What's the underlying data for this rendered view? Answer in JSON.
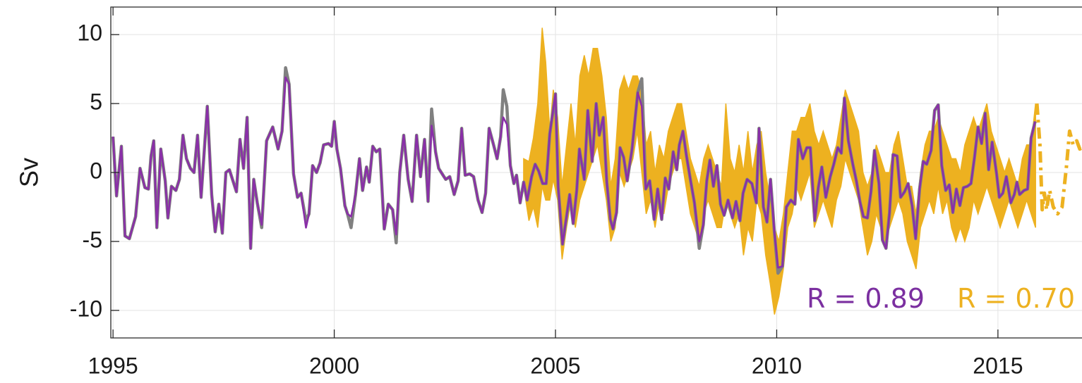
{
  "chart_data": {
    "type": "line",
    "ylabel": "Sv",
    "xlim": [
      1994.95,
      2016.9
    ],
    "ylim": [
      -12,
      12
    ],
    "xticks": [
      1995,
      2000,
      2005,
      2010,
      2015
    ],
    "yticks": [
      -10,
      -5,
      0,
      5,
      10
    ],
    "grid": true,
    "annotations": [
      {
        "text": "R = 0.89",
        "color": "#7b2fa0"
      },
      {
        "text": "R = 0.70",
        "color": "#edb120"
      }
    ],
    "x": [
      1995.0,
      1995.08,
      1995.19,
      1995.27,
      1995.37,
      1995.51,
      1995.61,
      1995.72,
      1995.8,
      1995.86,
      1995.92,
      1995.99,
      1996.08,
      1996.18,
      1996.24,
      1996.32,
      1996.42,
      1996.5,
      1996.58,
      1996.66,
      1996.75,
      1996.83,
      1996.91,
      1996.99,
      1997.13,
      1997.23,
      1997.31,
      1997.39,
      1997.47,
      1997.55,
      1997.63,
      1997.79,
      1997.87,
      1997.95,
      1998.03,
      1998.11,
      1998.18,
      1998.26,
      1998.36,
      1998.47,
      1998.61,
      1998.73,
      1998.82,
      1998.9,
      1998.98,
      1999.08,
      1999.17,
      1999.25,
      1999.36,
      1999.43,
      1999.51,
      1999.6,
      1999.68,
      1999.76,
      1999.87,
      1999.94,
      2000.0,
      2000.06,
      2000.14,
      2000.24,
      2000.3,
      2000.38,
      2000.48,
      2000.57,
      2000.64,
      2000.73,
      2000.79,
      2000.87,
      2000.95,
      2001.03,
      2001.13,
      2001.22,
      2001.32,
      2001.4,
      2001.48,
      2001.57,
      2001.67,
      2001.76,
      2001.86,
      2001.95,
      2002.04,
      2002.12,
      2002.2,
      2002.29,
      2002.36,
      2002.44,
      2002.52,
      2002.61,
      2002.71,
      2002.8,
      2002.88,
      2002.96,
      2003.06,
      2003.15,
      2003.25,
      2003.34,
      2003.42,
      2003.5,
      2003.6,
      2003.68,
      2003.76,
      2003.82,
      2003.9,
      2003.98,
      2004.06,
      2004.12,
      2004.2,
      2004.28,
      2004.36,
      2004.46,
      2004.54,
      2004.62,
      2004.71,
      2004.79,
      2004.87,
      2005.0,
      2005.06,
      2005.16,
      2005.24,
      2005.32,
      2005.4,
      2005.48,
      2005.54,
      2005.65,
      2005.73,
      2005.83,
      2005.92,
      2005.99,
      2006.08,
      2006.16,
      2006.24,
      2006.3,
      2006.38,
      2006.46,
      2006.54,
      2006.62,
      2006.73,
      2006.86,
      2006.95,
      2007.04,
      2007.13,
      2007.23,
      2007.31,
      2007.4,
      2007.48,
      2007.56,
      2007.66,
      2007.74,
      2007.8,
      2007.88,
      2007.96,
      2008.06,
      2008.14,
      2008.25,
      2008.34,
      2008.42,
      2008.49,
      2008.57,
      2008.65,
      2008.73,
      2008.81,
      2008.9,
      2009.0,
      2009.08,
      2009.17,
      2009.24,
      2009.33,
      2009.44,
      2009.54,
      2009.6,
      2009.7,
      2009.78,
      2009.86,
      2009.95,
      2010.03,
      2010.13,
      2010.22,
      2010.32,
      2010.41,
      2010.49,
      2010.59,
      2010.68,
      2010.76,
      2010.86,
      2010.94,
      2011.02,
      2011.11,
      2011.21,
      2011.29,
      2011.38,
      2011.46,
      2011.53,
      2011.62,
      2011.72,
      2011.8,
      2011.88,
      2011.96,
      2012.05,
      2012.13,
      2012.21,
      2012.31,
      2012.39,
      2012.47,
      2012.55,
      2012.63,
      2012.72,
      2012.8,
      2012.89,
      2012.97,
      2013.06,
      2013.14,
      2013.23,
      2013.31,
      2013.39,
      2013.49,
      2013.57,
      2013.65,
      2013.73,
      2013.82,
      2013.9,
      2013.98,
      2014.06,
      2014.14,
      2014.22,
      2014.31,
      2014.39,
      2014.47,
      2014.55,
      2014.63,
      2014.71,
      2014.79,
      2014.87,
      2014.97,
      2015.03,
      2015.11,
      2015.19,
      2015.29,
      2015.37,
      2015.43,
      2015.49,
      2015.59,
      2015.67,
      2015.75,
      2015.84
    ],
    "series": [
      {
        "type": "band",
        "color": "#edb120",
        "x": [
          2004.28,
          2004.4,
          2004.5,
          2004.6,
          2004.7,
          2004.78,
          2004.87,
          2004.95,
          2005.05,
          2005.15,
          2005.25,
          2005.35,
          2005.45,
          2005.55,
          2005.65,
          2005.75,
          2005.85,
          2005.95,
          2006.05,
          2006.15,
          2006.25,
          2006.35,
          2006.45,
          2006.55,
          2006.65,
          2006.75,
          2006.85,
          2006.95,
          2007.05,
          2007.15,
          2007.25,
          2007.35,
          2007.45,
          2007.55,
          2007.65,
          2007.75,
          2007.85,
          2007.95,
          2008.05,
          2008.15,
          2008.25,
          2008.35,
          2008.45,
          2008.55,
          2008.65,
          2008.75,
          2008.85,
          2008.95,
          2009.05,
          2009.15,
          2009.25,
          2009.35,
          2009.45,
          2009.55,
          2009.65,
          2009.75,
          2009.85,
          2009.95,
          2010.05,
          2010.15,
          2010.25,
          2010.35,
          2010.45,
          2010.55,
          2010.65,
          2010.75,
          2010.85,
          2010.95,
          2011.05,
          2011.15,
          2011.25,
          2011.35,
          2011.45,
          2011.55,
          2011.65,
          2011.75,
          2011.85,
          2011.95,
          2012.05,
          2012.15,
          2012.25,
          2012.35,
          2012.45,
          2012.55,
          2012.65,
          2012.75,
          2012.85,
          2012.95,
          2013.05,
          2013.15,
          2013.25,
          2013.35,
          2013.45,
          2013.55,
          2013.65,
          2013.75,
          2013.85,
          2013.95,
          2014.05,
          2014.15,
          2014.25,
          2014.35,
          2014.45,
          2014.55,
          2014.65,
          2014.75,
          2014.85,
          2014.95,
          2015.05,
          2015.15,
          2015.25,
          2015.35,
          2015.45,
          2015.55,
          2015.65,
          2015.75,
          2015.85
        ],
        "lower": [
          -1,
          -3.5,
          -2.5,
          -4,
          -1,
          -2,
          -2,
          -0.5,
          -2,
          -6.3,
          -4,
          -2,
          -4,
          -2,
          -1,
          0,
          1,
          2,
          0,
          -2,
          -5,
          -4,
          0,
          -1,
          0,
          1,
          3,
          0,
          -3,
          -2,
          -4,
          -2,
          -3,
          -1,
          0,
          1,
          1,
          -1,
          -3,
          -4,
          -5,
          -3,
          -2,
          -3,
          -4,
          -4,
          -2,
          -3,
          -4,
          -3,
          -6,
          -4,
          -5,
          -2,
          -3,
          -6,
          -8,
          -10.3,
          -9,
          -7,
          -4,
          -3,
          -1,
          -2,
          -1,
          0,
          -4,
          -3,
          -2,
          -3,
          -4,
          -2,
          -1,
          1,
          0,
          -1,
          -2,
          -4,
          -6,
          -5,
          -3,
          -4,
          -5,
          -4,
          -3,
          -2,
          -3,
          -5,
          -6,
          -7,
          -4,
          -3,
          -2,
          -3,
          -1,
          -3,
          -2,
          -4,
          -5,
          -4,
          -5,
          -4,
          -2,
          -3,
          -2,
          -1,
          -2,
          -3,
          -4,
          -3,
          -2,
          -3,
          -4,
          -3,
          -2,
          -3,
          -4
        ],
        "upper": [
          1,
          0.8,
          2.5,
          5,
          10.5,
          8,
          3,
          6,
          4,
          -1,
          2,
          5,
          2,
          7,
          8.5,
          7,
          9,
          9,
          7,
          4,
          -1,
          1,
          6,
          7,
          6,
          7,
          7,
          6,
          2,
          3,
          0,
          2,
          1,
          3,
          4,
          5,
          5,
          3,
          1,
          0,
          -1,
          1,
          2,
          1,
          0,
          -1,
          5,
          1,
          0,
          2,
          0,
          3,
          0,
          2,
          3,
          0,
          -2,
          -4,
          -5,
          -3,
          0,
          3,
          3,
          4,
          4,
          5,
          3,
          2,
          3,
          2,
          1,
          2,
          4,
          6,
          5,
          4,
          3,
          0,
          -1,
          0,
          2,
          1,
          0,
          0,
          2,
          3,
          1,
          -1,
          -1,
          -3,
          0,
          2,
          3,
          3,
          4,
          3,
          2,
          1,
          1,
          0,
          2,
          3,
          4,
          3,
          4,
          5,
          3,
          2,
          1,
          0,
          1,
          0,
          -1,
          1,
          2,
          2,
          5
        ]
      },
      {
        "type": "line",
        "color": "#808080",
        "values": [
          2.6,
          -1.7,
          1.9,
          -4.6,
          -4.8,
          -3.2,
          0.3,
          -1.1,
          -1.2,
          1.2,
          2.3,
          -4.0,
          1.7,
          -0.6,
          -3.3,
          -1.0,
          -1.3,
          -0.5,
          2.7,
          1.0,
          0.3,
          0.0,
          2.7,
          -1.8,
          4.8,
          -1.6,
          -4.3,
          -2.3,
          -4.4,
          0.0,
          0.2,
          -1.4,
          2.4,
          0.3,
          4.0,
          -5.5,
          -0.5,
          -2.2,
          -4.0,
          2.3,
          3.3,
          1.7,
          3.0,
          7.6,
          6.4,
          -0.1,
          -1.8,
          -1.5,
          -3.5,
          -3.0,
          0.5,
          0.0,
          0.7,
          2.0,
          2.1,
          1.9,
          3.7,
          1.7,
          0.3,
          -2.4,
          -3.0,
          -4.0,
          -1.6,
          1.0,
          -1.3,
          0.4,
          -0.7,
          1.9,
          1.5,
          1.7,
          -4.1,
          -2.3,
          -2.7,
          -5.1,
          0.0,
          2.7,
          -0.5,
          -2.1,
          2.7,
          -0.3,
          2.4,
          -2.1,
          4.6,
          1.5,
          0.3,
          -0.1,
          -0.5,
          -0.3,
          -1.6,
          -0.6,
          3.2,
          -0.2,
          -0.1,
          -0.3,
          -2.0,
          -2.9,
          -1.5,
          3.2,
          2.0,
          1.0,
          2.6,
          6.0,
          4.8,
          0.5,
          -0.8,
          -0.2,
          -2.2,
          -0.7,
          -2.0,
          -0.3,
          0.6,
          0.1,
          -0.8,
          -0.8,
          2.8,
          5.7,
          -1.0,
          -5.2,
          -3.4,
          -1.6,
          -3.7,
          -1.3,
          1.7,
          -0.5,
          4.5,
          0.8,
          5.0,
          2.7,
          4.0,
          -0.7,
          -3.4,
          -4.1,
          -2.9,
          1.8,
          1.1,
          -0.6,
          1.7,
          5.8,
          6.8,
          -1.2,
          -0.6,
          -3.4,
          -1.2,
          -3.4,
          -0.4,
          -1.2,
          1.5,
          0.2,
          2.0,
          3.0,
          1.2,
          -0.7,
          -2.2,
          -5.5,
          -3.8,
          -0.6,
          0.9,
          -1.0,
          0.5,
          -2.3,
          -3.1,
          -2.0,
          -3.3,
          -2.1,
          -3.5,
          -1.5,
          -0.5,
          -0.8,
          -2.2,
          3.2,
          -2.5,
          -3.6,
          -0.5,
          -4.4,
          -7.3,
          -6.8,
          -2.5,
          -2.0,
          -2.3,
          2.4,
          1.0,
          1.8,
          1.8,
          -3.5,
          -1.1,
          0.4,
          -1.8,
          -0.3,
          0.6,
          1.8,
          1.4,
          5.4,
          2.3,
          0.6,
          -0.6,
          -2.1,
          -3.2,
          -3.3,
          -1.4,
          1.6,
          -0.8,
          -4.9,
          -5.5,
          -2.9,
          1.3,
          1.2,
          -1.8,
          -1.4,
          -0.8,
          -2.4,
          -4.8,
          -1.2,
          0.8,
          0.6,
          1.6,
          4.5,
          4.9,
          0.5,
          -1.3,
          -0.9,
          -2.9,
          -1.2,
          -2.4,
          -1.1,
          -1.0,
          -0.8,
          1.1,
          3.3,
          2.1,
          4.3,
          0.2,
          2.2,
          -0.1,
          -1.8,
          -1.5,
          -0.3,
          -2.2,
          -1.6,
          -0.7,
          -1.6,
          -1.3,
          -1.2,
          2.5,
          3.7
        ]
      },
      {
        "type": "line",
        "color": "#edb120",
        "dash": true,
        "x": [
          2015.88,
          2015.95,
          2016.0,
          2016.05,
          2016.1,
          2016.17,
          2016.25,
          2016.35,
          2016.45,
          2016.55,
          2016.62,
          2016.7,
          2016.78,
          2016.85,
          2016.9
        ],
        "values": [
          5,
          2,
          -2.7,
          -1.5,
          -2.7,
          -1.3,
          -2.5,
          -3,
          -2.5,
          0.5,
          3,
          2,
          2.3,
          1.7,
          1.8
        ]
      },
      {
        "type": "line",
        "color": "#8a2fa8",
        "values": [
          2.6,
          -1.7,
          1.9,
          -4.6,
          -4.8,
          -3.2,
          0.3,
          -1.1,
          -1.2,
          1.2,
          2.3,
          -4.0,
          1.7,
          -0.6,
          -3.3,
          -1.0,
          -1.3,
          -0.5,
          2.7,
          1.0,
          0.3,
          0.0,
          2.7,
          -1.8,
          4.8,
          -1.6,
          -4.3,
          -2.3,
          -4.4,
          0.0,
          0.2,
          -1.4,
          2.4,
          0.3,
          4.0,
          -5.5,
          -0.5,
          -2.2,
          -3.8,
          2.3,
          3.3,
          1.7,
          3.0,
          6.9,
          6.4,
          -0.1,
          -1.8,
          -1.5,
          -4.0,
          -3.0,
          0.5,
          0.0,
          0.7,
          2.0,
          2.1,
          1.9,
          3.7,
          1.7,
          0.3,
          -2.4,
          -3.0,
          -3.2,
          -1.6,
          1.0,
          -1.3,
          0.4,
          -0.7,
          1.9,
          1.5,
          1.7,
          -4.1,
          -2.3,
          -2.7,
          -4.5,
          0.0,
          2.7,
          -0.5,
          -2.1,
          2.7,
          -0.3,
          2.4,
          -2.1,
          3.4,
          1.5,
          0.3,
          -0.1,
          -0.5,
          -0.3,
          -1.6,
          -0.6,
          3.2,
          -0.2,
          -0.1,
          -0.3,
          -2.0,
          -2.9,
          -1.5,
          3.2,
          2.0,
          1.0,
          2.6,
          4.0,
          3.5,
          0.5,
          -0.8,
          -0.2,
          -2.2,
          -0.7,
          -2.0,
          -0.3,
          0.6,
          0.1,
          -0.8,
          -0.8,
          2.8,
          5.7,
          -1.0,
          -5.2,
          -3.4,
          -1.6,
          -3.7,
          -1.3,
          1.7,
          -0.5,
          4.5,
          0.8,
          5.0,
          2.7,
          4.0,
          -0.7,
          -3.4,
          -4.1,
          -2.9,
          1.8,
          1.1,
          -0.6,
          1.7,
          5.8,
          4.8,
          -1.2,
          -0.6,
          -3.4,
          -1.2,
          -3.4,
          -0.4,
          -1.2,
          1.5,
          0.2,
          2.0,
          3.0,
          1.2,
          -0.7,
          -2.2,
          -5.0,
          -3.8,
          -0.6,
          0.9,
          -1.0,
          0.5,
          -2.3,
          -3.1,
          -2.0,
          -3.3,
          -2.1,
          -3.5,
          -1.5,
          -0.5,
          -0.8,
          -2.2,
          3.2,
          -2.5,
          -3.6,
          -0.5,
          -4.4,
          -6.9,
          -6.8,
          -2.5,
          -2.0,
          -2.3,
          2.4,
          1.0,
          1.8,
          1.8,
          -3.5,
          -1.1,
          0.4,
          -1.8,
          -0.3,
          0.6,
          1.8,
          1.4,
          5.4,
          2.3,
          0.6,
          -0.6,
          -2.1,
          -3.2,
          -3.3,
          -1.4,
          1.6,
          -0.8,
          -4.9,
          -5.5,
          -2.9,
          1.3,
          1.2,
          -1.8,
          -1.4,
          -0.8,
          -2.4,
          -4.8,
          -1.2,
          0.8,
          0.6,
          1.6,
          4.5,
          4.9,
          0.5,
          -1.3,
          -0.9,
          -2.9,
          -1.2,
          -2.4,
          -1.1,
          -1.0,
          -0.8,
          1.1,
          3.3,
          2.1,
          4.3,
          0.2,
          2.2,
          -0.1,
          -1.8,
          -1.5,
          -0.3,
          -2.2,
          -1.6,
          -0.7,
          -1.6,
          -1.3,
          -1.2,
          2.5,
          3.7
        ]
      }
    ]
  }
}
